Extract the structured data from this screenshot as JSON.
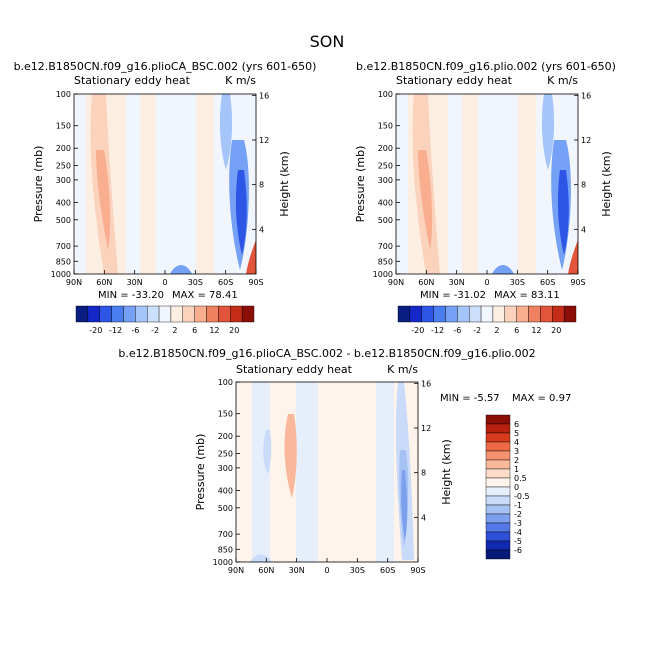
{
  "page_title": "SON",
  "chart_data": [
    {
      "type": "heatmap",
      "title": "b.e12.B1850CN.f09_g16.plioCA_BSC.002 (yrs 601-650)",
      "subtitle_left": "Stationary eddy heat",
      "subtitle_right": "K m/s",
      "ylabel": "Pressure (mb)",
      "ylabel_right": "Height (km)",
      "x_ticks": [
        "90N",
        "60N",
        "30N",
        "0",
        "30S",
        "60S",
        "90S"
      ],
      "y_ticks": [
        "100",
        "150",
        "200",
        "250",
        "300",
        "400",
        "500",
        "700",
        "850",
        "1000"
      ],
      "height_ticks": [
        "16",
        "12",
        "8",
        "4"
      ],
      "min_label": "MIN = -33.20",
      "max_label": "MAX =  78.41",
      "min": -33.2,
      "max": 78.41,
      "colorbar_levels": [
        "-20",
        "-12",
        "-6",
        "-2",
        "2",
        "6",
        "12",
        "20"
      ]
    },
    {
      "type": "heatmap",
      "title": "b.e12.B1850CN.f09_g16.plio.002 (yrs 601-650)",
      "subtitle_left": "Stationary eddy heat",
      "subtitle_right": "K m/s",
      "ylabel": "Pressure (mb)",
      "ylabel_right": "Height (km)",
      "x_ticks": [
        "90N",
        "60N",
        "30N",
        "0",
        "30S",
        "60S",
        "90S"
      ],
      "y_ticks": [
        "100",
        "150",
        "200",
        "250",
        "300",
        "400",
        "500",
        "700",
        "850",
        "1000"
      ],
      "height_ticks": [
        "16",
        "12",
        "8",
        "4"
      ],
      "min_label": "MIN = -31.02",
      "max_label": "MAX =  83.11",
      "min": -31.02,
      "max": 83.11,
      "colorbar_levels": [
        "-20",
        "-12",
        "-6",
        "-2",
        "2",
        "6",
        "12",
        "20"
      ]
    },
    {
      "type": "heatmap",
      "title": "b.e12.B1850CN.f09_g16.plioCA_BSC.002 - b.e12.B1850CN.f09_g16.plio.002",
      "subtitle_left": "Stationary eddy heat",
      "subtitle_right": "K m/s",
      "ylabel": "Pressure (mb)",
      "ylabel_right": "Height (km)",
      "x_ticks": [
        "90N",
        "60N",
        "30N",
        "0",
        "30S",
        "60S",
        "90S"
      ],
      "y_ticks": [
        "100",
        "150",
        "200",
        "250",
        "300",
        "400",
        "500",
        "700",
        "850",
        "1000"
      ],
      "height_ticks": [
        "16",
        "12",
        "8",
        "4"
      ],
      "min_label": "MIN =  -5.57",
      "max_label": "MAX =   0.97",
      "min": -5.57,
      "max": 0.97,
      "colorbar_levels": [
        "6",
        "5",
        "4",
        "3",
        "2",
        "1",
        "0.5",
        "0",
        "-0.5",
        "-1",
        "-2",
        "-3",
        "-4",
        "-5",
        "-6"
      ]
    }
  ],
  "colors": {
    "abs_palette": [
      "#0a1e82",
      "#1428c8",
      "#2d55e6",
      "#4a7df0",
      "#74a0f5",
      "#a5c5fa",
      "#cde0fb",
      "#f1f6fe",
      "#fdeee2",
      "#fbd3bd",
      "#f8ae8f",
      "#f08160",
      "#e2553a",
      "#c42c17",
      "#8b0f07"
    ],
    "diff_palette": [
      "#8b0f07",
      "#b8200f",
      "#d83a1e",
      "#ee6a44",
      "#f4916e",
      "#f9b79c",
      "#fcdcc8",
      "#fff4eb",
      "#e6eefc",
      "#c9dbf8",
      "#a6c1f3",
      "#7da0ee",
      "#5479e6",
      "#2e4fd8",
      "#1128b0",
      "#071a7a"
    ]
  }
}
